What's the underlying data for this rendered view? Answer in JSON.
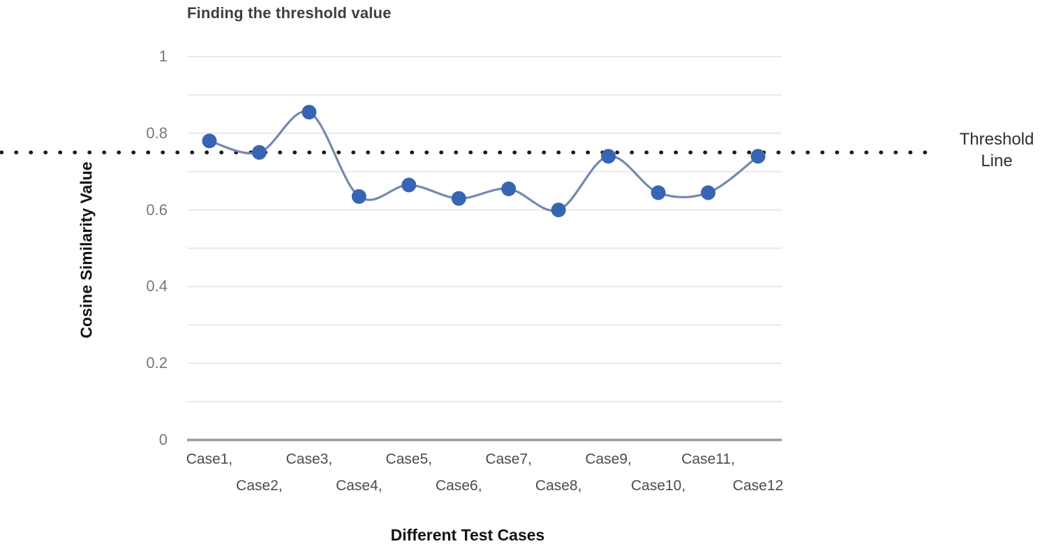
{
  "figure": {
    "kind": "static line chart figure",
    "background": "#ffffff"
  },
  "chart_data": {
    "type": "line",
    "title": "Finding the threshold value",
    "xlabel": "Different Test Cases",
    "ylabel": "Cosine Similarity Value",
    "categories": [
      "Case1",
      "Case2",
      "Case3",
      "Case4",
      "Case5",
      "Case6",
      "Case7",
      "Case8",
      "Case9",
      "Case10",
      "Case11",
      "Case12"
    ],
    "x_labels_display": [
      "Case1,",
      "Case2,",
      "Case3,",
      "Case4,",
      "Case5,",
      "Case6,",
      "Case7,",
      "Case8,",
      "Case9,",
      "Case10,",
      "Case11,",
      "Case12"
    ],
    "series": [
      {
        "name": "Cosine Similarity Value",
        "values": [
          0.78,
          0.75,
          0.855,
          0.635,
          0.665,
          0.63,
          0.655,
          0.6,
          0.74,
          0.645,
          0.645,
          0.74
        ]
      }
    ],
    "threshold": {
      "value": 0.75,
      "label": "Threshold Line",
      "style": "black dotted horizontal line"
    },
    "ylim": [
      0,
      1
    ],
    "yticks": [
      0,
      0.2,
      0.4,
      0.6,
      0.8,
      1
    ],
    "ytick_labels": [
      "0",
      "0.2",
      "0.4",
      "0.6",
      "0.8",
      "1"
    ],
    "grid": "horizontal gridlines every 0.1",
    "legend_position": "none",
    "colors": {
      "point": "#3765b3",
      "line": "#7389ae",
      "grid": "#e9e9e9",
      "baseline": "#9a9a9a",
      "threshold_dots": "#1b1b1b",
      "title_text": "#3c3f43",
      "tick_text": "#787878",
      "category_text": "#4b4b4b",
      "axis_title_text": "#131313",
      "threshold_text": "#2e2e2e"
    }
  }
}
